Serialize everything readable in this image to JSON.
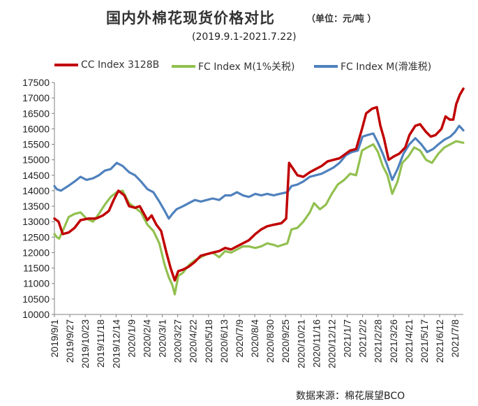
{
  "header": {
    "title": "国内外棉花现货价格对比",
    "unit": "（单位：元/吨 ）",
    "subtitle": "(2019.9.1-2021.7.22)"
  },
  "source": "数据来源：棉花展望BCO",
  "chart_data": {
    "type": "line",
    "title": "国内外棉花现货价格对比",
    "subtitle": "(2019.9.1-2021.7.22)",
    "xlabel": "",
    "ylabel": "",
    "ylim": [
      10000,
      17500
    ],
    "yticks": [
      10000,
      10500,
      11000,
      11500,
      12000,
      12500,
      13000,
      13500,
      14000,
      14500,
      15000,
      15500,
      16000,
      16500,
      17000,
      17500
    ],
    "xlim": [
      "2019-09-01",
      "2021-07-22"
    ],
    "xticks": [
      "2019/9/1",
      "2019/9/27",
      "2019/10/23",
      "2019/11/18",
      "2019/12/14",
      "2020/1/9",
      "2020/2/4",
      "2020/3/1",
      "2020/3/27",
      "2020/4/22",
      "2020/5/18",
      "2020/6/13",
      "2020/7/9",
      "2020/8/4",
      "2020/8/30",
      "2020/9/25",
      "2020/10/21",
      "2020/11/16",
      "2020/12/12",
      "2021/1/7",
      "2021/2/2",
      "2021/2/28",
      "2021/3/26",
      "2021/4/21",
      "2021/5/17",
      "2021/6/12",
      "2021/7/8"
    ],
    "grid": false,
    "legend_position": "top",
    "series": [
      {
        "name": "CC Index 3128B",
        "color": "#c00000",
        "points": [
          [
            "2019-09-01",
            13100
          ],
          [
            "2019-09-08",
            13000
          ],
          [
            "2019-09-15",
            12600
          ],
          [
            "2019-09-25",
            12650
          ],
          [
            "2019-10-05",
            12800
          ],
          [
            "2019-10-15",
            13050
          ],
          [
            "2019-10-28",
            13100
          ],
          [
            "2019-11-10",
            13100
          ],
          [
            "2019-11-22",
            13200
          ],
          [
            "2019-12-02",
            13350
          ],
          [
            "2019-12-10",
            13700
          ],
          [
            "2019-12-18",
            14000
          ],
          [
            "2019-12-28",
            13850
          ],
          [
            "2020-01-05",
            13500
          ],
          [
            "2020-01-15",
            13450
          ],
          [
            "2020-01-23",
            13500
          ],
          [
            "2020-02-05",
            13050
          ],
          [
            "2020-02-12",
            13200
          ],
          [
            "2020-02-20",
            12900
          ],
          [
            "2020-02-28",
            12700
          ],
          [
            "2020-03-08",
            12000
          ],
          [
            "2020-03-15",
            11500
          ],
          [
            "2020-03-22",
            11100
          ],
          [
            "2020-03-28",
            11400
          ],
          [
            "2020-04-05",
            11450
          ],
          [
            "2020-04-15",
            11550
          ],
          [
            "2020-04-25",
            11700
          ],
          [
            "2020-05-05",
            11900
          ],
          [
            "2020-05-15",
            11950
          ],
          [
            "2020-05-25",
            12000
          ],
          [
            "2020-06-05",
            12050
          ],
          [
            "2020-06-15",
            12150
          ],
          [
            "2020-06-25",
            12100
          ],
          [
            "2020-07-05",
            12200
          ],
          [
            "2020-07-15",
            12300
          ],
          [
            "2020-07-25",
            12400
          ],
          [
            "2020-08-05",
            12600
          ],
          [
            "2020-08-15",
            12750
          ],
          [
            "2020-08-25",
            12850
          ],
          [
            "2020-09-05",
            12900
          ],
          [
            "2020-09-18",
            12950
          ],
          [
            "2020-09-26",
            13100
          ],
          [
            "2020-10-01",
            14900
          ],
          [
            "2020-10-08",
            14700
          ],
          [
            "2020-10-15",
            14500
          ],
          [
            "2020-10-25",
            14450
          ],
          [
            "2020-11-05",
            14600
          ],
          [
            "2020-11-15",
            14700
          ],
          [
            "2020-11-25",
            14800
          ],
          [
            "2020-12-05",
            14950
          ],
          [
            "2020-12-15",
            15000
          ],
          [
            "2020-12-25",
            15050
          ],
          [
            "2021-01-05",
            15200
          ],
          [
            "2021-01-12",
            15300
          ],
          [
            "2021-01-22",
            15350
          ],
          [
            "2021-02-01",
            16000
          ],
          [
            "2021-02-08",
            16500
          ],
          [
            "2021-02-18",
            16650
          ],
          [
            "2021-02-26",
            16700
          ],
          [
            "2021-03-04",
            16100
          ],
          [
            "2021-03-10",
            15700
          ],
          [
            "2021-03-18",
            15000
          ],
          [
            "2021-03-26",
            15100
          ],
          [
            "2021-04-05",
            15200
          ],
          [
            "2021-04-15",
            15400
          ],
          [
            "2021-04-22",
            15800
          ],
          [
            "2021-05-02",
            16100
          ],
          [
            "2021-05-10",
            16150
          ],
          [
            "2021-05-20",
            15900
          ],
          [
            "2021-05-28",
            15750
          ],
          [
            "2021-06-05",
            15800
          ],
          [
            "2021-06-15",
            16000
          ],
          [
            "2021-06-22",
            16400
          ],
          [
            "2021-06-29",
            16300
          ],
          [
            "2021-07-05",
            16300
          ],
          [
            "2021-07-10",
            16800
          ],
          [
            "2021-07-16",
            17100
          ],
          [
            "2021-07-22",
            17300
          ]
        ]
      },
      {
        "name": "FC Index M(1%关税)",
        "color": "#92c050",
        "points": [
          [
            "2019-09-01",
            12600
          ],
          [
            "2019-09-05",
            12500
          ],
          [
            "2019-09-09",
            12450
          ],
          [
            "2019-09-15",
            12700
          ],
          [
            "2019-09-25",
            13150
          ],
          [
            "2019-10-05",
            13250
          ],
          [
            "2019-10-15",
            13300
          ],
          [
            "2019-10-25",
            13100
          ],
          [
            "2019-11-05",
            13000
          ],
          [
            "2019-11-15",
            13250
          ],
          [
            "2019-11-25",
            13550
          ],
          [
            "2019-12-05",
            13800
          ],
          [
            "2019-12-15",
            13950
          ],
          [
            "2019-12-25",
            14000
          ],
          [
            "2020-01-05",
            13600
          ],
          [
            "2020-01-15",
            13450
          ],
          [
            "2020-01-25",
            13300
          ],
          [
            "2020-02-05",
            12900
          ],
          [
            "2020-02-15",
            12700
          ],
          [
            "2020-02-25",
            12300
          ],
          [
            "2020-03-05",
            11600
          ],
          [
            "2020-03-12",
            11200
          ],
          [
            "2020-03-18",
            10950
          ],
          [
            "2020-03-22",
            10650
          ],
          [
            "2020-03-28",
            11250
          ],
          [
            "2020-04-05",
            11350
          ],
          [
            "2020-04-15",
            11600
          ],
          [
            "2020-04-25",
            11750
          ],
          [
            "2020-05-05",
            11850
          ],
          [
            "2020-05-15",
            11950
          ],
          [
            "2020-05-25",
            12000
          ],
          [
            "2020-06-05",
            11850
          ],
          [
            "2020-06-15",
            12050
          ],
          [
            "2020-06-25",
            12000
          ],
          [
            "2020-07-05",
            12100
          ],
          [
            "2020-07-15",
            12200
          ],
          [
            "2020-07-25",
            12200
          ],
          [
            "2020-08-05",
            12150
          ],
          [
            "2020-08-15",
            12200
          ],
          [
            "2020-08-25",
            12300
          ],
          [
            "2020-09-05",
            12250
          ],
          [
            "2020-09-12",
            12200
          ],
          [
            "2020-09-28",
            12300
          ],
          [
            "2020-10-05",
            12750
          ],
          [
            "2020-10-15",
            12800
          ],
          [
            "2020-10-25",
            13000
          ],
          [
            "2020-11-05",
            13300
          ],
          [
            "2020-11-12",
            13600
          ],
          [
            "2020-11-22",
            13400
          ],
          [
            "2020-12-02",
            13550
          ],
          [
            "2020-12-12",
            13900
          ],
          [
            "2020-12-22",
            14200
          ],
          [
            "2021-01-02",
            14350
          ],
          [
            "2021-01-12",
            14550
          ],
          [
            "2021-01-22",
            14500
          ],
          [
            "2021-02-01",
            15300
          ],
          [
            "2021-02-10",
            15400
          ],
          [
            "2021-02-20",
            15500
          ],
          [
            "2021-02-28",
            15250
          ],
          [
            "2021-03-08",
            14800
          ],
          [
            "2021-03-16",
            14500
          ],
          [
            "2021-03-24",
            13900
          ],
          [
            "2021-04-02",
            14300
          ],
          [
            "2021-04-10",
            14900
          ],
          [
            "2021-04-20",
            15100
          ],
          [
            "2021-04-30",
            15400
          ],
          [
            "2021-05-10",
            15300
          ],
          [
            "2021-05-20",
            15000
          ],
          [
            "2021-05-30",
            14900
          ],
          [
            "2021-06-10",
            15200
          ],
          [
            "2021-06-20",
            15400
          ],
          [
            "2021-06-30",
            15500
          ],
          [
            "2021-07-10",
            15600
          ],
          [
            "2021-07-22",
            15550
          ]
        ]
      },
      {
        "name": "FC Index M(滑准税)",
        "color": "#4f81bd",
        "points": [
          [
            "2019-09-01",
            14150
          ],
          [
            "2019-09-05",
            14050
          ],
          [
            "2019-09-12",
            14000
          ],
          [
            "2019-09-16",
            14050
          ],
          [
            "2019-09-24",
            14150
          ],
          [
            "2019-10-05",
            14300
          ],
          [
            "2019-10-15",
            14450
          ],
          [
            "2019-10-25",
            14350
          ],
          [
            "2019-11-05",
            14400
          ],
          [
            "2019-11-15",
            14500
          ],
          [
            "2019-11-25",
            14650
          ],
          [
            "2019-12-05",
            14700
          ],
          [
            "2019-12-15",
            14900
          ],
          [
            "2019-12-25",
            14800
          ],
          [
            "2020-01-05",
            14600
          ],
          [
            "2020-01-15",
            14500
          ],
          [
            "2020-01-25",
            14300
          ],
          [
            "2020-02-05",
            14050
          ],
          [
            "2020-02-15",
            13950
          ],
          [
            "2020-02-25",
            13650
          ],
          [
            "2020-03-05",
            13350
          ],
          [
            "2020-03-12",
            13100
          ],
          [
            "2020-03-18",
            13250
          ],
          [
            "2020-03-25",
            13400
          ],
          [
            "2020-04-05",
            13500
          ],
          [
            "2020-04-15",
            13600
          ],
          [
            "2020-04-25",
            13700
          ],
          [
            "2020-05-05",
            13650
          ],
          [
            "2020-05-15",
            13700
          ],
          [
            "2020-05-25",
            13750
          ],
          [
            "2020-06-05",
            13700
          ],
          [
            "2020-06-15",
            13850
          ],
          [
            "2020-06-25",
            13850
          ],
          [
            "2020-07-05",
            13950
          ],
          [
            "2020-07-15",
            13850
          ],
          [
            "2020-07-25",
            13800
          ],
          [
            "2020-08-05",
            13900
          ],
          [
            "2020-08-15",
            13850
          ],
          [
            "2020-08-25",
            13900
          ],
          [
            "2020-09-05",
            13850
          ],
          [
            "2020-09-15",
            13900
          ],
          [
            "2020-09-28",
            13950
          ],
          [
            "2020-10-05",
            14150
          ],
          [
            "2020-10-15",
            14200
          ],
          [
            "2020-10-25",
            14300
          ],
          [
            "2020-11-05",
            14450
          ],
          [
            "2020-11-15",
            14500
          ],
          [
            "2020-11-25",
            14550
          ],
          [
            "2020-12-05",
            14650
          ],
          [
            "2020-12-15",
            14750
          ],
          [
            "2020-12-25",
            14900
          ],
          [
            "2021-01-05",
            15150
          ],
          [
            "2021-01-15",
            15250
          ],
          [
            "2021-01-25",
            15300
          ],
          [
            "2021-02-02",
            15750
          ],
          [
            "2021-02-10",
            15800
          ],
          [
            "2021-02-20",
            15850
          ],
          [
            "2021-02-28",
            15550
          ],
          [
            "2021-03-08",
            15200
          ],
          [
            "2021-03-16",
            14800
          ],
          [
            "2021-03-24",
            14350
          ],
          [
            "2021-04-02",
            14700
          ],
          [
            "2021-04-12",
            15200
          ],
          [
            "2021-04-22",
            15500
          ],
          [
            "2021-05-02",
            15700
          ],
          [
            "2021-05-12",
            15500
          ],
          [
            "2021-05-22",
            15250
          ],
          [
            "2021-06-01",
            15350
          ],
          [
            "2021-06-10",
            15500
          ],
          [
            "2021-06-20",
            15650
          ],
          [
            "2021-06-30",
            15750
          ],
          [
            "2021-07-08",
            15900
          ],
          [
            "2021-07-15",
            16100
          ],
          [
            "2021-07-22",
            15950
          ]
        ]
      }
    ]
  }
}
